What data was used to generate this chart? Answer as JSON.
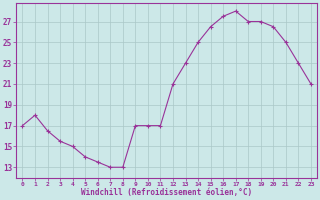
{
  "x": [
    0,
    1,
    2,
    3,
    4,
    5,
    6,
    7,
    8,
    9,
    10,
    11,
    12,
    13,
    14,
    15,
    16,
    17,
    18,
    19,
    20,
    21,
    22,
    23
  ],
  "y": [
    17,
    18,
    16.5,
    15.5,
    15,
    14,
    13.5,
    13,
    13,
    17,
    17,
    17,
    21,
    23,
    25,
    26.5,
    27.5,
    28,
    27,
    27,
    26.5,
    25,
    23,
    21
  ],
  "xlabel": "Windchill (Refroidissement éolien,°C)",
  "ytick_labels": [
    "13",
    "15",
    "17",
    "19",
    "21",
    "23",
    "25",
    "27"
  ],
  "ytick_vals": [
    13,
    15,
    17,
    19,
    21,
    23,
    25,
    27
  ],
  "xlim": [
    -0.5,
    23.5
  ],
  "ylim": [
    12.0,
    28.8
  ],
  "line_color": "#993399",
  "bg_color": "#cce8e8",
  "grid_color": "#aac8c8",
  "label_color": "#993399"
}
